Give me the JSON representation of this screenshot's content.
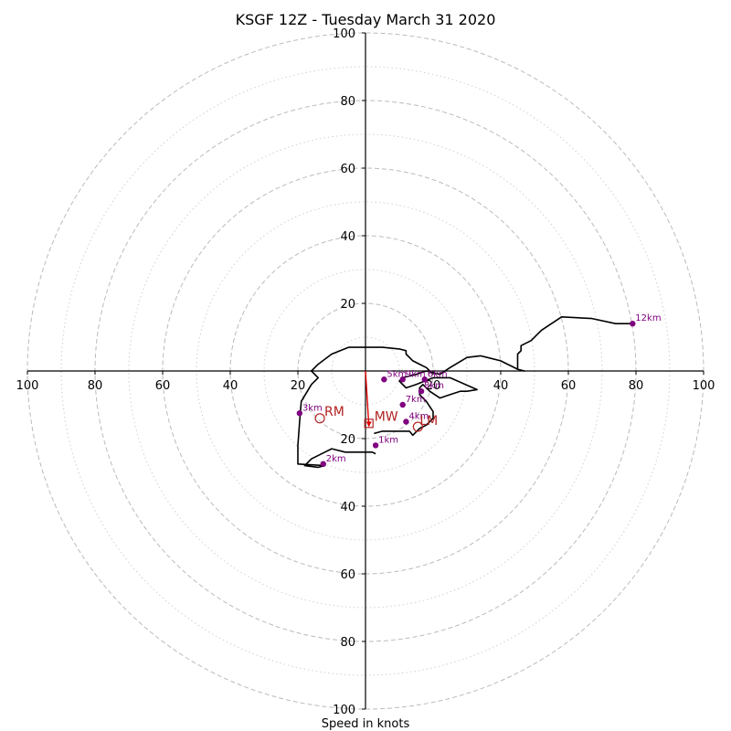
{
  "chart_data": {
    "type": "hodograph",
    "title": "KSGF 12Z - Tuesday March 31 2020",
    "xlabel": "Speed in knots",
    "ring_max": 100,
    "major_rings": [
      20,
      40,
      60,
      80,
      100
    ],
    "minor_rings": [
      10,
      30,
      50,
      70,
      90
    ],
    "x_ticks": [
      {
        "value": -100,
        "label": "100"
      },
      {
        "value": -80,
        "label": "80"
      },
      {
        "value": -60,
        "label": "60"
      },
      {
        "value": -40,
        "label": "40"
      },
      {
        "value": -20,
        "label": "20"
      },
      {
        "value": 20,
        "label": "20"
      },
      {
        "value": 40,
        "label": "40"
      },
      {
        "value": 60,
        "label": "60"
      },
      {
        "value": 80,
        "label": "80"
      },
      {
        "value": 100,
        "label": "100"
      }
    ],
    "y_ticks": [
      {
        "value": 100,
        "label": "100"
      },
      {
        "value": 80,
        "label": "80"
      },
      {
        "value": 60,
        "label": "60"
      },
      {
        "value": 40,
        "label": "40"
      },
      {
        "value": 20,
        "label": "20"
      },
      {
        "value": -20,
        "label": "20"
      },
      {
        "value": -40,
        "label": "40"
      },
      {
        "value": -60,
        "label": "60"
      },
      {
        "value": -80,
        "label": "80"
      },
      {
        "value": -100,
        "label": "100"
      }
    ],
    "hodograph_line": [
      [
        2.5,
        -18.5
      ],
      [
        5,
        -17.8
      ],
      [
        13,
        -17.8
      ],
      [
        14,
        -19
      ],
      [
        15,
        -18
      ],
      [
        16,
        -17
      ],
      [
        18,
        -16
      ],
      [
        20,
        -14
      ],
      [
        20,
        -12
      ],
      [
        18,
        -9
      ],
      [
        16,
        -7
      ],
      [
        16,
        -5
      ],
      [
        17,
        -4
      ],
      [
        19,
        -6
      ],
      [
        22,
        -8
      ],
      [
        25,
        -7
      ],
      [
        28,
        -6
      ],
      [
        30,
        -6
      ],
      [
        33,
        -5.5
      ],
      [
        25,
        -2
      ],
      [
        20,
        -2
      ],
      [
        15,
        -4
      ],
      [
        12,
        -5
      ],
      [
        10,
        -3
      ],
      [
        11,
        -2
      ],
      [
        15,
        -1
      ],
      [
        18,
        0
      ],
      [
        22,
        -1
      ],
      [
        25,
        1
      ],
      [
        30,
        4
      ],
      [
        34,
        4.5
      ],
      [
        36,
        4
      ],
      [
        40,
        3
      ],
      [
        42,
        2
      ],
      [
        43,
        1.5
      ],
      [
        45,
        0.5
      ],
      [
        47,
        0
      ],
      [
        45,
        0.5
      ],
      [
        45,
        2
      ],
      [
        45,
        3
      ],
      [
        45,
        5
      ],
      [
        46,
        6
      ],
      [
        46,
        7.5
      ],
      [
        49,
        9
      ],
      [
        52,
        12
      ],
      [
        58,
        16
      ],
      [
        67,
        15.5
      ],
      [
        74,
        14
      ],
      [
        78.5,
        14
      ]
    ],
    "hodograph_extra": [
      [
        3,
        -24.5
      ],
      [
        2,
        -24
      ],
      [
        -6,
        -24
      ],
      [
        -10,
        -23
      ],
      [
        -12,
        -24
      ],
      [
        -16,
        -26
      ],
      [
        -18,
        -28
      ],
      [
        -14,
        -28.5
      ],
      [
        -12,
        -28
      ],
      [
        -20,
        -27.5
      ],
      [
        -20,
        -22
      ],
      [
        -19.5,
        -15
      ],
      [
        -19,
        -9
      ],
      [
        -16,
        -4
      ],
      [
        -14,
        -2
      ],
      [
        -16,
        0
      ],
      [
        -14,
        2
      ],
      [
        -10,
        5
      ],
      [
        -5,
        7
      ],
      [
        5,
        7
      ],
      [
        10,
        6.5
      ],
      [
        12,
        6
      ],
      [
        12,
        5
      ],
      [
        14,
        3
      ],
      [
        16,
        2
      ],
      [
        18,
        1
      ],
      [
        19,
        0
      ]
    ],
    "height_markers": [
      {
        "label": "1km",
        "u": 3,
        "v": -22
      },
      {
        "label": "2km",
        "u": -12.5,
        "v": -27.5
      },
      {
        "label": "3km",
        "u": -19.5,
        "v": -12.5
      },
      {
        "label": "4km",
        "u": 12,
        "v": -15
      },
      {
        "label": "5km",
        "u": 5.5,
        "v": -2.5
      },
      {
        "label": "6km",
        "u": 17.5,
        "v": -2.5
      },
      {
        "label": "7km",
        "u": 11,
        "v": -10
      },
      {
        "label": "8km",
        "u": 16.5,
        "v": -6
      },
      {
        "label": "9km",
        "u": 11,
        "v": -2.5
      },
      {
        "label": "12km",
        "u": 79,
        "v": 14
      }
    ],
    "storm_motion": {
      "RM": {
        "label": "RM",
        "u": -13.5,
        "v": -14
      },
      "LM": {
        "label": "LM",
        "u": 15.5,
        "v": -16.5
      },
      "MW": {
        "label": "MW",
        "u": 1,
        "v": -15.5
      }
    },
    "colors": {
      "hodograph": "#000000",
      "markers": "#800080",
      "storm_motion": "#b22222",
      "mean_wind_vector": "#e00000",
      "major_grid": "#bbbbbb",
      "minor_grid": "#d0d0d0",
      "axes": "#000000"
    }
  }
}
